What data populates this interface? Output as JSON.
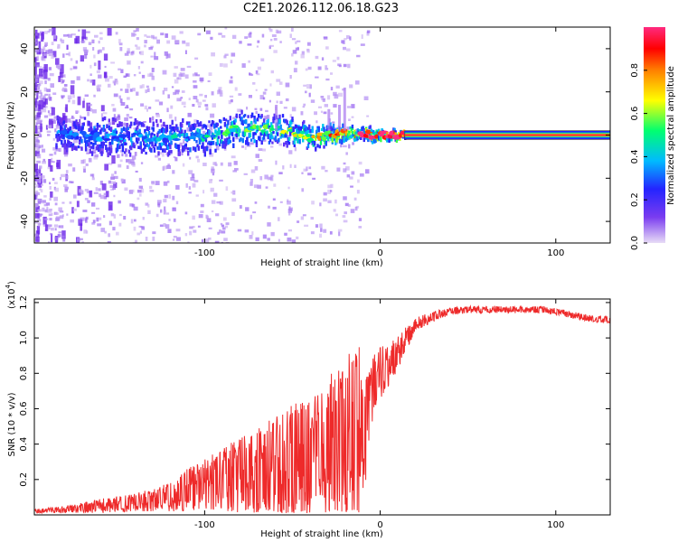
{
  "title": "C2E1.2026.112.06.18.G23",
  "chart_data": [
    {
      "type": "heatmap",
      "title": "C2E1.2026.112.06.18.G23",
      "xlabel": "Height of straight line (km)",
      "ylabel": "Frequency (Hz)",
      "xlim": [
        -197,
        131
      ],
      "ylim": [
        -50,
        50
      ],
      "xticks": [
        -100,
        0,
        100
      ],
      "yticks": [
        40,
        20,
        0,
        -20,
        -40
      ],
      "xtick_labels": [
        "-100",
        "0",
        "100"
      ],
      "ytick_labels": [
        "40",
        "20",
        "0",
        "-20",
        "-40"
      ],
      "colorbar": {
        "label": "Normalized spectral amplitude",
        "range": [
          0,
          1
        ],
        "ticks": [
          0.0,
          0.2,
          0.4,
          0.6,
          0.8
        ],
        "tick_labels": [
          "0.0",
          "0.2",
          "0.4",
          "0.6",
          "0.8"
        ],
        "colormap": [
          "#e6d8f5",
          "#7b3cf0",
          "#2222ff",
          "#00c0ff",
          "#00ff60",
          "#ffff00",
          "#ff8000",
          "#ff0000",
          "#ff2f80"
        ]
      },
      "series": [
        {
          "name": "Spectral band",
          "description_points": [
            {
              "x": -180,
              "center_hz": 0,
              "halfwidth_hz": 7,
              "amplitude": 0.25
            },
            {
              "x": -140,
              "center_hz": -1,
              "halfwidth_hz": 7,
              "amplitude": 0.3
            },
            {
              "x": -100,
              "center_hz": -1,
              "halfwidth_hz": 7,
              "amplitude": 0.35
            },
            {
              "x": -80,
              "center_hz": 3,
              "halfwidth_hz": 7,
              "amplitude": 0.45
            },
            {
              "x": -60,
              "center_hz": 3,
              "halfwidth_hz": 6,
              "amplitude": 0.45
            },
            {
              "x": -40,
              "center_hz": -1,
              "halfwidth_hz": 5,
              "amplitude": 0.5
            },
            {
              "x": -20,
              "center_hz": 1,
              "halfwidth_hz": 3,
              "amplitude": 0.7
            },
            {
              "x": 0,
              "center_hz": 0,
              "halfwidth_hz": 2,
              "amplitude": 0.85
            },
            {
              "x": 15,
              "center_hz": 0,
              "halfwidth_hz": 1.5,
              "amplitude": 1.0
            },
            {
              "x": 131,
              "center_hz": 0,
              "halfwidth_hz": 1.5,
              "amplitude": 1.0
            }
          ]
        }
      ]
    },
    {
      "type": "line",
      "title": "",
      "xlabel": "Height of straight line (km)",
      "ylabel": "SNR (10 * v/v)",
      "y_multiplier_label": "(x10",
      "y_multiplier_exponent": "4",
      "y_multiplier_close": ")",
      "xlim": [
        -197,
        131
      ],
      "ylim": [
        0,
        1.22
      ],
      "xticks": [
        -100,
        0,
        100
      ],
      "xtick_labels": [
        "-100",
        "0",
        "100"
      ],
      "yticks": [
        0.2,
        0.4,
        0.6,
        0.8,
        1.0,
        1.2
      ],
      "ytick_labels": [
        "0.2",
        "0.4",
        "0.6",
        "0.8",
        "1.0",
        "1.2"
      ],
      "series": [
        {
          "name": "SNR",
          "color": "#ee2a2a",
          "x": [
            -197,
            -180,
            -160,
            -140,
            -120,
            -110,
            -100,
            -90,
            -80,
            -70,
            -60,
            -50,
            -40,
            -30,
            -20,
            -15,
            -12,
            -8,
            -5,
            0,
            5,
            10,
            15,
            20,
            30,
            40,
            50,
            60,
            70,
            80,
            90,
            100,
            110,
            120,
            131
          ],
          "y": [
            0.02,
            0.03,
            0.05,
            0.07,
            0.1,
            0.14,
            0.17,
            0.2,
            0.23,
            0.25,
            0.27,
            0.3,
            0.33,
            0.38,
            0.42,
            0.45,
            0.45,
            0.5,
            0.7,
            0.8,
            0.85,
            0.92,
            1.0,
            1.08,
            1.12,
            1.15,
            1.16,
            1.16,
            1.16,
            1.16,
            1.16,
            1.15,
            1.13,
            1.11,
            1.1
          ],
          "noise_amplitude": [
            0.01,
            0.02,
            0.04,
            0.05,
            0.08,
            0.12,
            0.15,
            0.18,
            0.22,
            0.25,
            0.28,
            0.32,
            0.35,
            0.4,
            0.45,
            0.55,
            0.5,
            0.3,
            0.2,
            0.15,
            0.12,
            0.1,
            0.07,
            0.04,
            0.03,
            0.02,
            0.02,
            0.02,
            0.02,
            0.02,
            0.02,
            0.02,
            0.02,
            0.02,
            0.02
          ]
        }
      ]
    }
  ]
}
